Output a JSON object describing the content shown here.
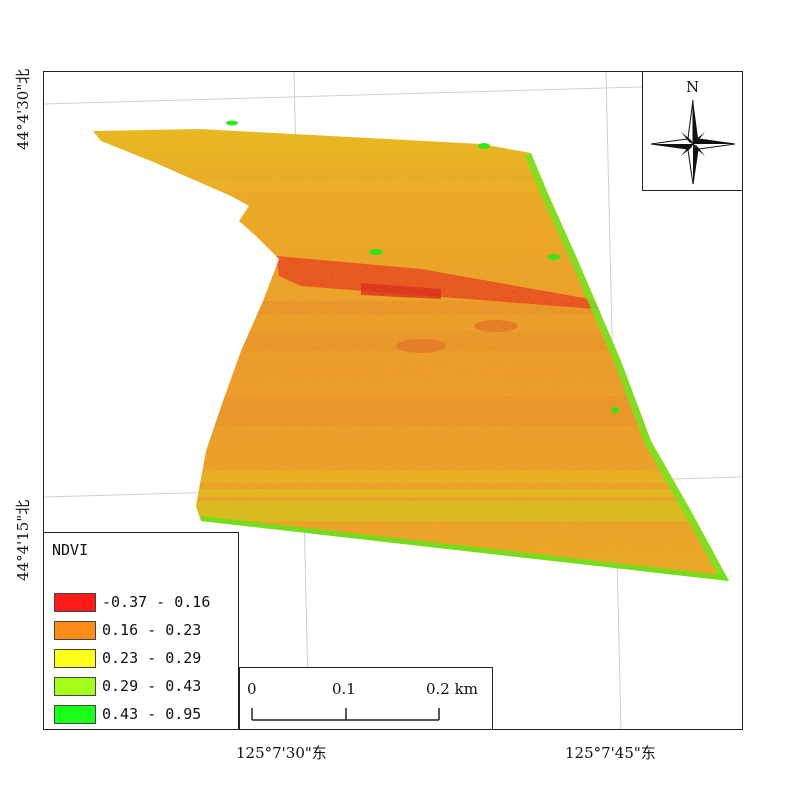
{
  "map": {
    "longitude_labels": [
      "125°7'30\"东",
      "125°7'45\"东"
    ],
    "latitude_labels": [
      "44°4'30\"北",
      "44°4'15\"北"
    ]
  },
  "legend": {
    "title": "NDVI",
    "classes": [
      {
        "label": "-0.37 - 0.16",
        "color": "#ff1a1a"
      },
      {
        "label": "0.16 - 0.23",
        "color": "#ff8c1a"
      },
      {
        "label": "0.23 - 0.29",
        "color": "#ffff1a"
      },
      {
        "label": "0.29 - 0.43",
        "color": "#a6ff1a"
      },
      {
        "label": "0.43 - 0.95",
        "color": "#1aff1a"
      }
    ]
  },
  "scale_bar": {
    "labels": [
      "0",
      "0.1",
      "0.2 km"
    ]
  },
  "north_arrow": {
    "letter": "N",
    "icon": "north-arrow-compass-icon"
  }
}
